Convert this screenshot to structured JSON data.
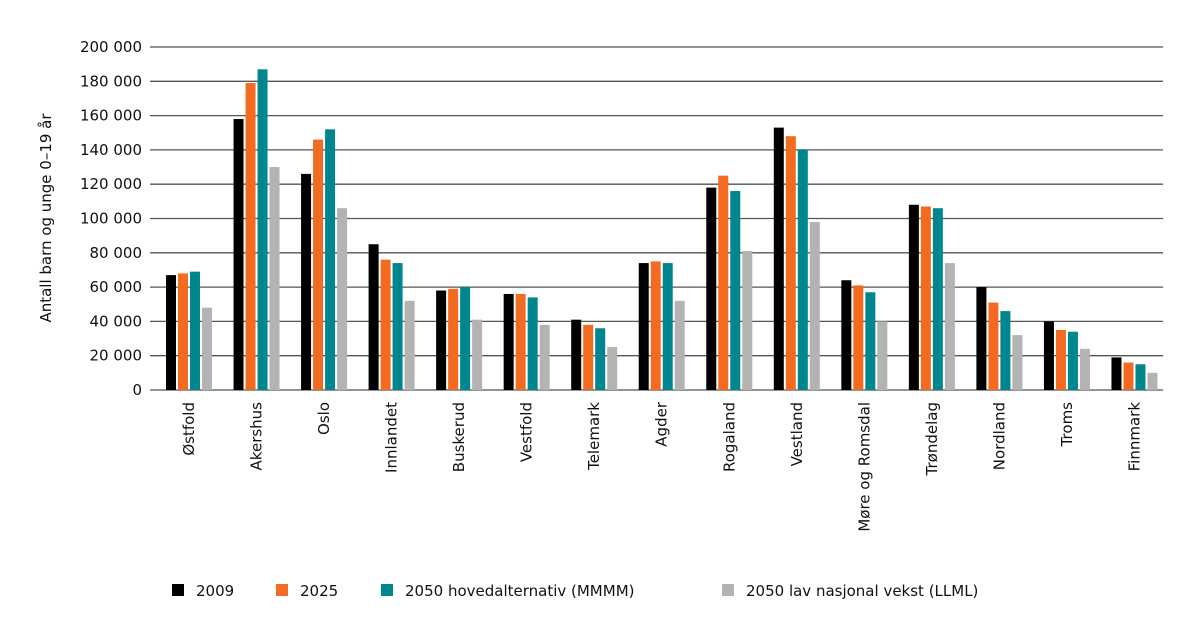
{
  "chart_data": {
    "type": "bar",
    "title": "",
    "xlabel": "",
    "ylabel": "Antall barn og unge 0–19 år",
    "ylim": [
      0,
      200000
    ],
    "yticks": [
      0,
      20000,
      40000,
      60000,
      80000,
      100000,
      120000,
      140000,
      160000,
      180000,
      200000
    ],
    "ytick_labels": [
      "0",
      "20 000",
      "40 000",
      "60 000",
      "80 000",
      "100 000",
      "120 000",
      "140 000",
      "160 000",
      "180 000",
      "200 000"
    ],
    "grid": "horizontal",
    "legend_position": "bottom",
    "categories": [
      "Østfold",
      "Akershus",
      "Oslo",
      "Innlandet",
      "Buskerud",
      "Vestfold",
      "Telemark",
      "Agder",
      "Rogaland",
      "Vestland",
      "Møre og Romsdal",
      "Trøndelag",
      "Nordland",
      "Troms",
      "Finnmark"
    ],
    "series": [
      {
        "name": "2009",
        "color": "#000000",
        "values": [
          67000,
          158000,
          126000,
          85000,
          58000,
          56000,
          41000,
          74000,
          118000,
          153000,
          64000,
          108000,
          60000,
          40000,
          19000
        ]
      },
      {
        "name": "2025",
        "color": "#f26b21",
        "values": [
          68000,
          179000,
          146000,
          76000,
          59000,
          56000,
          38000,
          75000,
          125000,
          148000,
          61000,
          107000,
          51000,
          35000,
          16000
        ]
      },
      {
        "name": "2050 hovedalternativ (MMMM)",
        "color": "#00868f",
        "values": [
          69000,
          187000,
          152000,
          74000,
          60000,
          54000,
          36000,
          74000,
          116000,
          140000,
          57000,
          106000,
          46000,
          34000,
          15000
        ]
      },
      {
        "name": "2050 lav nasjonal vekst (LLML)",
        "color": "#b3b3b3",
        "values": [
          48000,
          130000,
          106000,
          52000,
          41000,
          38000,
          25000,
          52000,
          81000,
          98000,
          40000,
          74000,
          32000,
          24000,
          10000
        ]
      }
    ]
  }
}
